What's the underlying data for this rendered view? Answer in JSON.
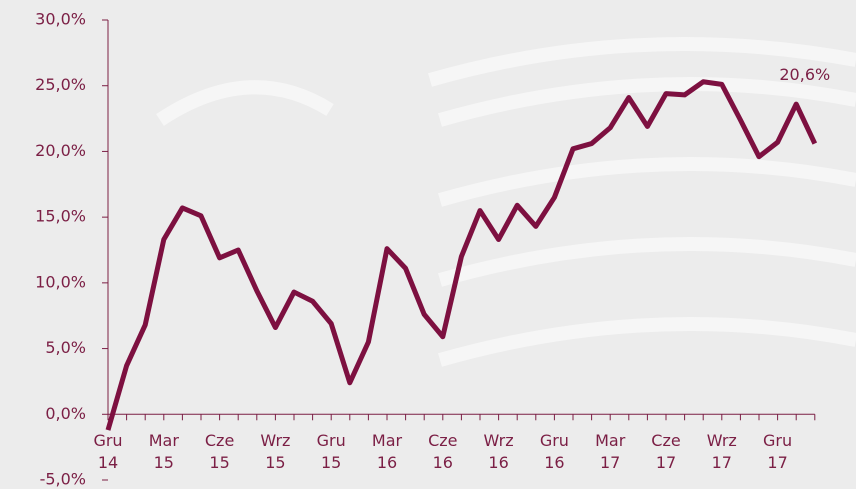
{
  "chart_data": {
    "type": "line",
    "categories": [
      "Gru 14",
      null,
      null,
      "Mar 15",
      null,
      null,
      "Cze 15",
      null,
      null,
      "Wrz 15",
      null,
      null,
      "Gru 15",
      null,
      null,
      "Mar 16",
      null,
      null,
      "Cze 16",
      null,
      null,
      "Wrz 16",
      null,
      null,
      "Gru 16",
      null,
      null,
      "Mar 17",
      null,
      null,
      "Cze 17",
      null,
      null,
      "Wrz 17",
      null,
      null,
      "Gru 17",
      null,
      null
    ],
    "series": [
      {
        "color": "#7d1040",
        "values": [
          -1.2,
          3.7,
          6.8,
          13.3,
          15.7,
          15.1,
          11.9,
          12.5,
          9.4,
          6.6,
          9.3,
          8.6,
          6.9,
          2.4,
          5.5,
          12.6,
          11.1,
          7.6,
          5.9,
          12.0,
          15.5,
          13.3,
          15.9,
          14.3,
          16.5,
          20.2,
          20.6,
          21.8,
          24.1,
          21.9,
          24.4,
          24.3,
          25.3,
          25.1,
          22.4,
          19.6,
          20.7,
          23.6,
          20.6
        ],
        "value_labels": [
          null,
          null,
          null,
          null,
          null,
          null,
          null,
          null,
          null,
          null,
          null,
          null,
          null,
          null,
          null,
          null,
          null,
          null,
          null,
          null,
          null,
          null,
          null,
          null,
          null,
          null,
          null,
          null,
          null,
          null,
          null,
          null,
          null,
          null,
          null,
          null,
          null,
          null,
          "20,6%"
        ]
      }
    ],
    "ylim": [
      -5,
      30
    ],
    "yticks": [
      {
        "value": -5,
        "label": "-5,0%"
      },
      {
        "value": 0,
        "label": "0,0%"
      },
      {
        "value": 5,
        "label": "5,0%"
      },
      {
        "value": 10,
        "label": "10,0%"
      },
      {
        "value": 15,
        "label": "15,0%"
      },
      {
        "value": 20,
        "label": "20,0%"
      },
      {
        "value": 25,
        "label": "25,0%"
      },
      {
        "value": 30,
        "label": "30,0%"
      }
    ]
  }
}
